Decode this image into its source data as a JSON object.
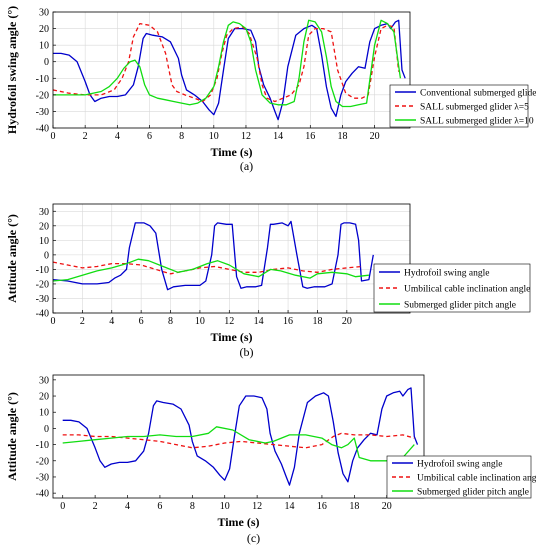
{
  "chart_data": [
    {
      "type": "line",
      "caption": "(a)",
      "xlabel": "Time (s)",
      "ylabel": "Hydrofoil swing angle (°)",
      "xlim": [
        0,
        22.2
      ],
      "ylim": [
        -40,
        30
      ],
      "xticks": [
        0,
        2,
        4,
        6,
        8,
        10,
        12,
        14,
        16,
        18,
        20
      ],
      "yticks": [
        -40,
        -30,
        -20,
        -10,
        0,
        10,
        20,
        30
      ],
      "grid": true,
      "legend_position": "bottom-right",
      "series": [
        {
          "name": "Conventional submerged glider",
          "color": "#0000cc",
          "dash": "solid",
          "x": [
            0,
            0.5,
            1.0,
            1.5,
            2.0,
            2.3,
            2.6,
            3.0,
            3.5,
            4.0,
            4.5,
            5.0,
            5.3,
            5.6,
            5.8,
            6.2,
            6.8,
            7.3,
            7.8,
            8.0,
            8.3,
            8.8,
            9.3,
            9.7,
            10.0,
            10.3,
            10.6,
            10.9,
            11.3,
            11.8,
            12.3,
            12.6,
            12.8,
            13.1,
            13.5,
            13.8,
            14.0,
            14.3,
            14.6,
            15.1,
            15.6,
            16.1,
            16.4,
            16.7,
            17.0,
            17.3,
            17.6,
            17.9,
            18.2,
            18.6,
            19.0,
            19.4,
            19.7,
            20.0,
            20.4,
            20.8,
            21.0,
            21.3,
            21.5,
            21.7,
            21.9
          ],
          "y": [
            5,
            5,
            4,
            0,
            -12,
            -20,
            -24,
            -22,
            -21,
            -21,
            -20,
            -14,
            -3,
            14,
            17,
            16,
            15,
            12,
            2,
            -8,
            -17,
            -20,
            -24,
            -29,
            -32,
            -25,
            -5,
            14,
            20,
            20,
            19,
            12,
            -3,
            -14,
            -22,
            -30,
            -35,
            -24,
            -3,
            16,
            20,
            22,
            20,
            4,
            -15,
            -28,
            -33,
            -20,
            -12,
            -7,
            -3,
            -4,
            12,
            20,
            22,
            23,
            20,
            24,
            25,
            -5,
            -10
          ]
        },
        {
          "name": "SALL submerged glider λ=5",
          "color": "#ee1111",
          "dash": "dashed",
          "x": [
            0,
            1.0,
            2.0,
            3.0,
            3.8,
            4.3,
            4.7,
            5.0,
            5.4,
            6.0,
            6.5,
            7.0,
            7.4,
            7.7,
            8.2,
            8.8,
            9.3,
            9.8,
            10.2,
            10.5,
            10.8,
            11.2,
            11.8,
            12.2,
            12.7,
            13.0,
            13.3,
            13.8,
            14.3,
            14.8,
            15.3,
            15.6,
            15.9,
            16.3,
            16.8,
            17.3,
            17.7,
            18.2,
            18.7,
            19.2,
            19.6,
            20.0,
            20.4,
            20.8,
            21.2,
            21.5
          ],
          "y": [
            -17,
            -19,
            -20,
            -20,
            -17,
            -10,
            0,
            15,
            23,
            22,
            18,
            5,
            -14,
            -18,
            -20,
            -22,
            -24,
            -20,
            -10,
            5,
            16,
            20,
            21,
            17,
            2,
            -14,
            -22,
            -24,
            -22,
            -20,
            -14,
            -3,
            16,
            20,
            20,
            18,
            -5,
            -19,
            -22,
            -22,
            -20,
            3,
            20,
            22,
            21,
            -6
          ]
        },
        {
          "name": "SALL submerged glider λ=10",
          "color": "#11dd11",
          "dash": "solid",
          "x": [
            0,
            1.0,
            2.0,
            3.0,
            3.5,
            4.0,
            4.4,
            4.8,
            5.1,
            5.4,
            5.7,
            6.0,
            6.5,
            7.0,
            7.5,
            8.0,
            8.5,
            9.0,
            9.5,
            10.0,
            10.3,
            10.6,
            10.9,
            11.2,
            11.6,
            12.0,
            12.3,
            12.6,
            13.0,
            13.5,
            14.0,
            14.5,
            15.0,
            15.3,
            15.6,
            15.9,
            16.3,
            16.7,
            17.0,
            17.3,
            17.6,
            18.0,
            18.5,
            19.0,
            19.5,
            20.0,
            20.4,
            20.8,
            21.2,
            21.6
          ],
          "y": [
            -20,
            -20,
            -20,
            -18,
            -15,
            -10,
            -4,
            0,
            1,
            -3,
            -14,
            -20,
            -22,
            -23,
            -24,
            -25,
            -26,
            -25,
            -22,
            -15,
            -3,
            12,
            22,
            24,
            23,
            20,
            12,
            -5,
            -20,
            -25,
            -26,
            -26,
            -24,
            -10,
            12,
            25,
            24,
            18,
            3,
            -15,
            -24,
            -27,
            -27,
            -26,
            -25,
            10,
            25,
            23,
            18,
            -10
          ]
        }
      ]
    },
    {
      "type": "line",
      "caption": "(b)",
      "xlabel": "Time (s)",
      "ylabel": "Attitude angle (°)",
      "xlim": [
        0,
        24.3
      ],
      "ylim": [
        -40,
        35
      ],
      "xticks": [
        0,
        2,
        4,
        6,
        8,
        10,
        12,
        14,
        16,
        18,
        20
      ],
      "yticks": [
        -40,
        -30,
        -20,
        -10,
        0,
        10,
        20,
        30
      ],
      "grid": true,
      "legend_position": "bottom-right",
      "series": [
        {
          "name": "Hydrofoil swing angle",
          "color": "#0000cc",
          "dash": "solid",
          "x": [
            0,
            1.0,
            2.0,
            3.0,
            3.8,
            4.2,
            4.6,
            5.0,
            5.2,
            5.6,
            6.2,
            6.6,
            7.0,
            7.4,
            7.8,
            8.2,
            9.0,
            10.0,
            10.4,
            10.8,
            11.0,
            11.2,
            11.8,
            12.2,
            12.5,
            12.8,
            13.2,
            13.8,
            14.2,
            14.6,
            14.8,
            15.0,
            15.6,
            16.0,
            16.2,
            16.6,
            17.0,
            17.3,
            17.8,
            18.5,
            19.0,
            19.4,
            19.6,
            19.8,
            20.2,
            20.6,
            20.8,
            21.0,
            21.5,
            21.8
          ],
          "y": [
            -17,
            -18,
            -20,
            -20,
            -19,
            -16,
            -14,
            -10,
            5,
            22,
            22,
            20,
            15,
            -10,
            -24,
            -22,
            -21,
            -21,
            -18,
            0,
            20,
            22,
            21,
            21,
            -15,
            -23,
            -22,
            -22,
            -21,
            5,
            21,
            21,
            22,
            20,
            23,
            0,
            -22,
            -23,
            -22,
            -22,
            -20,
            0,
            21,
            22,
            22,
            21,
            10,
            -18,
            -17,
            0
          ]
        },
        {
          "name": "Umbilical cable inclination angle",
          "color": "#ee1111",
          "dash": "dashed",
          "x": [
            0,
            1.0,
            2.0,
            3.0,
            4.0,
            5.0,
            6.0,
            7.0,
            8.0,
            9.0,
            10.0,
            11.0,
            12.0,
            13.0,
            14.0,
            15.0,
            16.0,
            17.0,
            18.0,
            19.0,
            20.0,
            21.0
          ],
          "y": [
            -5,
            -7,
            -9,
            -8,
            -6,
            -6,
            -7,
            -10,
            -13,
            -11,
            -9,
            -8,
            -10,
            -12,
            -12,
            -10,
            -9,
            -11,
            -12,
            -10,
            -9,
            -8
          ]
        },
        {
          "name": "Submerged glider pitch angle",
          "color": "#11dd11",
          "dash": "solid",
          "x": [
            0,
            1.0,
            2.0,
            3.0,
            4.0,
            5.0,
            5.8,
            6.5,
            7.5,
            8.5,
            9.5,
            10.5,
            11.2,
            12.0,
            13.0,
            14.0,
            14.8,
            15.5,
            16.5,
            17.5,
            18.0,
            19.0,
            20.0,
            20.6,
            21.5
          ],
          "y": [
            -18,
            -17,
            -14,
            -11,
            -9,
            -6,
            -3,
            -4,
            -8,
            -12,
            -10,
            -6,
            -4,
            -7,
            -13,
            -15,
            -10,
            -11,
            -14,
            -16,
            -13,
            -12,
            -13,
            -15,
            -14
          ]
        }
      ]
    },
    {
      "type": "line",
      "caption": "(c)",
      "xlabel": "Time (s)",
      "ylabel": "Attitude angle (°)",
      "xlim": [
        -0.6,
        22.3
      ],
      "ylim": [
        -43,
        33
      ],
      "xticks": [
        0,
        2,
        4,
        6,
        8,
        10,
        12,
        14,
        16,
        18,
        20
      ],
      "yticks": [
        -40,
        -30,
        -20,
        -10,
        0,
        10,
        20,
        30
      ],
      "grid": false,
      "legend_position": "bottom-right",
      "series": [
        {
          "name": "Hydrofoil swing angle",
          "color": "#0000cc",
          "dash": "solid",
          "x": [
            0,
            0.5,
            1.0,
            1.5,
            2.0,
            2.3,
            2.6,
            3.0,
            3.5,
            4.0,
            4.5,
            5.0,
            5.3,
            5.6,
            5.8,
            6.2,
            6.8,
            7.3,
            7.8,
            8.0,
            8.3,
            8.8,
            9.3,
            9.7,
            10.0,
            10.3,
            10.6,
            10.9,
            11.3,
            11.8,
            12.3,
            12.6,
            12.8,
            13.1,
            13.5,
            13.8,
            14.0,
            14.3,
            14.6,
            15.1,
            15.6,
            16.1,
            16.4,
            16.7,
            17.0,
            17.3,
            17.6,
            17.9,
            18.2,
            18.6,
            19.0,
            19.4,
            19.7,
            20.0,
            20.4,
            20.8,
            21.0,
            21.3,
            21.5,
            21.7,
            21.9
          ],
          "y": [
            5,
            5,
            4,
            0,
            -12,
            -20,
            -24,
            -22,
            -21,
            -21,
            -20,
            -14,
            -3,
            14,
            17,
            16,
            15,
            12,
            2,
            -8,
            -17,
            -20,
            -24,
            -29,
            -32,
            -25,
            -5,
            14,
            20,
            20,
            19,
            12,
            -3,
            -14,
            -22,
            -30,
            -35,
            -24,
            -3,
            16,
            20,
            22,
            20,
            4,
            -15,
            -28,
            -33,
            -20,
            -12,
            -7,
            -3,
            -4,
            12,
            20,
            22,
            23,
            20,
            24,
            25,
            -5,
            -10
          ]
        },
        {
          "name": "Umbilical cable inclination angle",
          "color": "#ee1111",
          "dash": "dashed",
          "x": [
            0,
            1.0,
            2.0,
            3.0,
            4.0,
            5.0,
            6.0,
            7.0,
            8.0,
            9.0,
            10.0,
            11.0,
            12.0,
            13.0,
            14.0,
            15.0,
            16.0,
            16.7,
            17.2,
            18.0,
            19.0,
            20.0,
            21.0,
            21.7
          ],
          "y": [
            -4,
            -4,
            -5,
            -5,
            -6,
            -7,
            -8,
            -10,
            -12,
            -11,
            -9,
            -8,
            -9,
            -10,
            -11,
            -12,
            -10,
            -5,
            -3,
            -4,
            -4,
            -5,
            -4,
            -6
          ]
        },
        {
          "name": "Submerged glider pitch angle",
          "color": "#11dd11",
          "dash": "solid",
          "x": [
            0,
            1.0,
            2.0,
            3.0,
            4.0,
            5.0,
            6.0,
            7.0,
            8.0,
            9.0,
            9.5,
            10.5,
            11.5,
            12.5,
            13.0,
            14.0,
            15.0,
            16.0,
            16.6,
            17.2,
            17.6,
            18.0,
            18.3,
            19.0,
            20.0,
            21.0,
            21.7
          ],
          "y": [
            -9,
            -8,
            -7,
            -6,
            -5,
            -5,
            -4,
            -5,
            -5,
            -3,
            1,
            -1,
            -7,
            -9,
            -8,
            -4,
            -4,
            -6,
            -10,
            -12,
            -10,
            -6,
            -18,
            -20,
            -20,
            -18,
            -10
          ]
        }
      ]
    }
  ]
}
